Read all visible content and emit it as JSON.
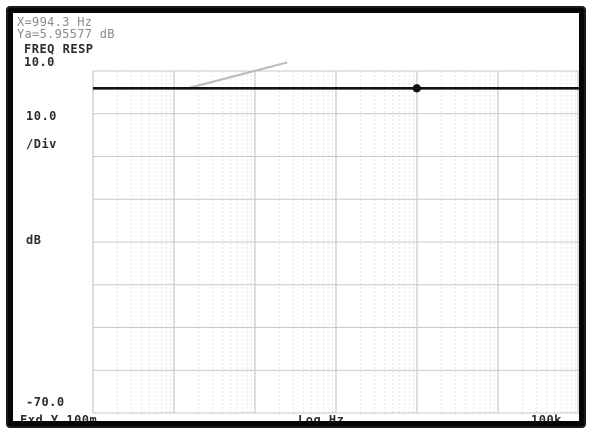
{
  "readout": {
    "x_line": "X=994.3 Hz",
    "y_line": "Ya=5.95577 dB"
  },
  "labels": {
    "mode": "FREQ RESP",
    "top_ref": "10.0",
    "scale_value": "10.0",
    "scale_unit": "/Div",
    "y_unit": "dB",
    "bottom_ref": "-70.0",
    "x_left": "Fxd Y 100m",
    "x_center": "Log Hz",
    "x_right": "100k"
  },
  "colors": {
    "background": "#ffffff",
    "grid": "#c9c9c9",
    "trace": "#111111",
    "ghost": "#b9b9b9",
    "text": "#2c2c2c"
  },
  "chart_data": {
    "type": "line",
    "title": "FREQ RESP",
    "xlabel": "Log Hz",
    "ylabel": "dB",
    "x_scale": "log",
    "xlim": [
      0.1,
      100000
    ],
    "ylim": [
      -70,
      10
    ],
    "y_per_div": 10,
    "grid": true,
    "series": [
      {
        "x": [
          0.1,
          100000
        ],
        "y": [
          5.95577,
          5.95577
        ]
      }
    ],
    "marker": {
      "x": 994.3,
      "y": 5.95577
    },
    "ghost_trace": {
      "x": [
        1.5,
        25
      ],
      "y": [
        6,
        12
      ]
    }
  }
}
